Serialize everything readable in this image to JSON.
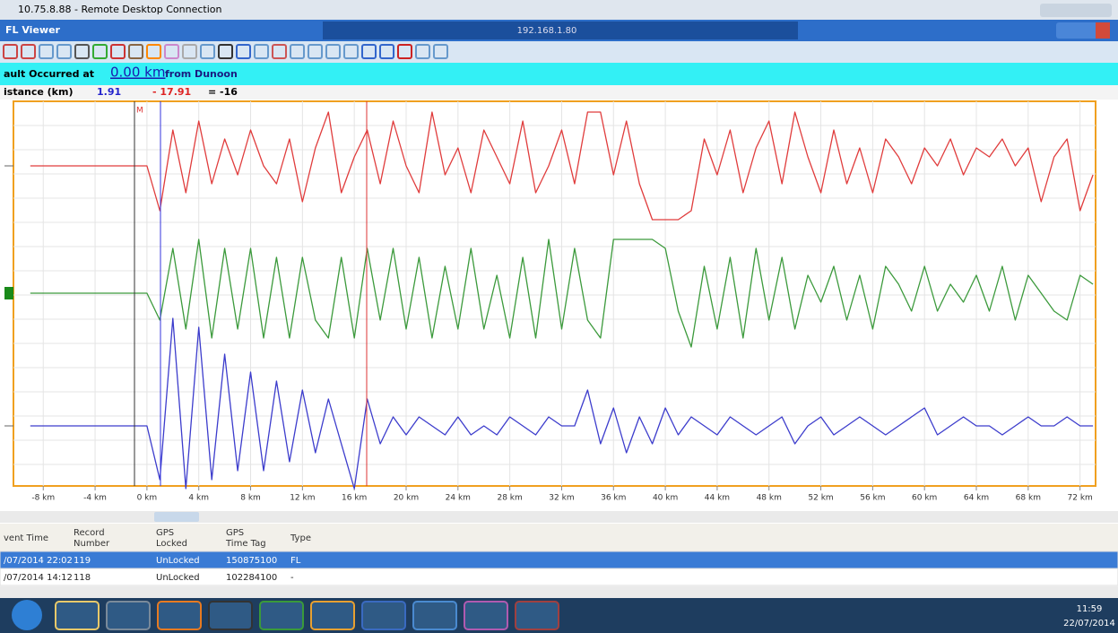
{
  "window": {
    "title": "10.75.8.88 - Remote Desktop Connection"
  },
  "app": {
    "title": "FL Viewer",
    "host": "192.168.1.80"
  },
  "fault": {
    "prefix": "ault Occurred at",
    "distance": "0.00 km",
    "suffix": "from  Dunoon"
  },
  "distance": {
    "label": "istance (km)",
    "blue": "1.91",
    "red": "- 17.91",
    "diff": "= -16"
  },
  "chart_data": {
    "type": "line",
    "marker": "M",
    "x": [
      -9,
      0,
      1,
      2,
      3,
      4,
      5,
      6,
      7,
      8,
      9,
      10,
      11,
      12,
      13,
      14,
      15,
      16,
      17,
      18,
      19,
      20,
      21,
      22,
      23,
      24,
      25,
      26,
      27,
      28,
      29,
      30,
      31,
      32,
      33,
      34,
      35,
      36,
      37,
      38,
      39,
      40,
      41,
      42,
      43,
      44,
      45,
      46,
      47,
      48,
      49,
      50,
      51,
      52,
      53,
      54,
      55,
      56,
      57,
      58,
      59,
      60,
      61,
      62,
      63,
      64,
      65,
      66,
      67,
      68,
      69,
      70,
      71,
      72,
      73
    ],
    "xlim": [
      -10.3,
      73.2
    ],
    "xticks": [
      {
        "value": -8,
        "label": "-8 km"
      },
      {
        "value": -4,
        "label": "-4 km"
      },
      {
        "value": 0,
        "label": "0 km"
      },
      {
        "value": 4,
        "label": "4 km"
      },
      {
        "value": 8,
        "label": "8 km"
      },
      {
        "value": 12,
        "label": "12 km"
      },
      {
        "value": 16,
        "label": "16 km"
      },
      {
        "value": 20,
        "label": "20 km"
      },
      {
        "value": 24,
        "label": "24 km"
      },
      {
        "value": 28,
        "label": "28 km"
      },
      {
        "value": 32,
        "label": "32 km"
      },
      {
        "value": 36,
        "label": "36 km"
      },
      {
        "value": 40,
        "label": "40 km"
      },
      {
        "value": 44,
        "label": "44 km"
      },
      {
        "value": 48,
        "label": "48 km"
      },
      {
        "value": 52,
        "label": "52 km"
      },
      {
        "value": 56,
        "label": "56 km"
      },
      {
        "value": 60,
        "label": "60 km"
      },
      {
        "value": 64,
        "label": "64 km"
      },
      {
        "value": 68,
        "label": "68 km"
      },
      {
        "value": 72,
        "label": "72 km"
      }
    ],
    "grid": true,
    "series": [
      {
        "color": "#e03c3c",
        "values": [
          0,
          0,
          -5,
          4,
          -3,
          5,
          -2,
          3,
          -1,
          4,
          0,
          -2,
          3,
          -4,
          2,
          6,
          -3,
          1,
          4,
          -2,
          5,
          0,
          -3,
          6,
          -1,
          2,
          -3,
          4,
          1,
          -2,
          5,
          -3,
          0,
          4,
          -2,
          6,
          6,
          -1,
          5,
          -2,
          -6,
          -6,
          -6,
          -5,
          3,
          -1,
          4,
          -3,
          2,
          5,
          -2,
          6,
          1,
          -3,
          4,
          -2,
          2,
          -3,
          3,
          1,
          -2,
          2,
          0,
          3,
          -1,
          2,
          1,
          3,
          0,
          2,
          -4,
          1,
          3,
          -5,
          -1
        ]
      },
      {
        "color": "#3c9a3c",
        "values": [
          0,
          0,
          -3,
          5,
          -4,
          6,
          -5,
          5,
          -4,
          5,
          -5,
          4,
          -5,
          4,
          -3,
          -5,
          4,
          -5,
          5,
          -3,
          5,
          -4,
          4,
          -5,
          3,
          -4,
          5,
          -4,
          2,
          -5,
          4,
          -5,
          6,
          -4,
          5,
          -3,
          -5,
          6,
          6,
          6,
          6,
          5,
          -2,
          -6,
          3,
          -4,
          4,
          -5,
          5,
          -3,
          4,
          -4,
          2,
          -1,
          3,
          -3,
          2,
          -4,
          3,
          1,
          -2,
          3,
          -2,
          1,
          -1,
          2,
          -2,
          3,
          -3,
          2,
          0,
          -2,
          -3,
          2,
          1
        ]
      },
      {
        "color": "#3c3ccc",
        "values": [
          0,
          0,
          -6,
          12,
          -7,
          11,
          -6,
          8,
          -5,
          6,
          -5,
          5,
          -4,
          4,
          -3,
          3,
          -2,
          -7,
          3,
          -2,
          1,
          -1,
          1,
          0,
          -1,
          1,
          -1,
          0,
          -1,
          1,
          0,
          -1,
          1,
          0,
          0,
          4,
          -2,
          2,
          -3,
          1,
          -2,
          2,
          -1,
          1,
          0,
          -1,
          1,
          0,
          -1,
          0,
          1,
          -2,
          0,
          1,
          -1,
          0,
          1,
          0,
          -1,
          0,
          1,
          2,
          -1,
          0,
          1,
          0,
          0,
          -1,
          0,
          1,
          0,
          0,
          1,
          0,
          0
        ]
      }
    ]
  },
  "table": {
    "columns": [
      "vent Time",
      "Record\nNumber",
      "GPS\nLocked",
      "GPS\nTime Tag",
      "Type"
    ],
    "rows": [
      [
        "/07/2014 22:02",
        "119",
        "UnLocked",
        "150875100",
        "FL"
      ],
      [
        "/07/2014 14:12",
        "118",
        "UnLocked",
        "102284100",
        "-"
      ]
    ]
  },
  "taskbar": {
    "time": "11:59",
    "date": "22/07/2014"
  }
}
